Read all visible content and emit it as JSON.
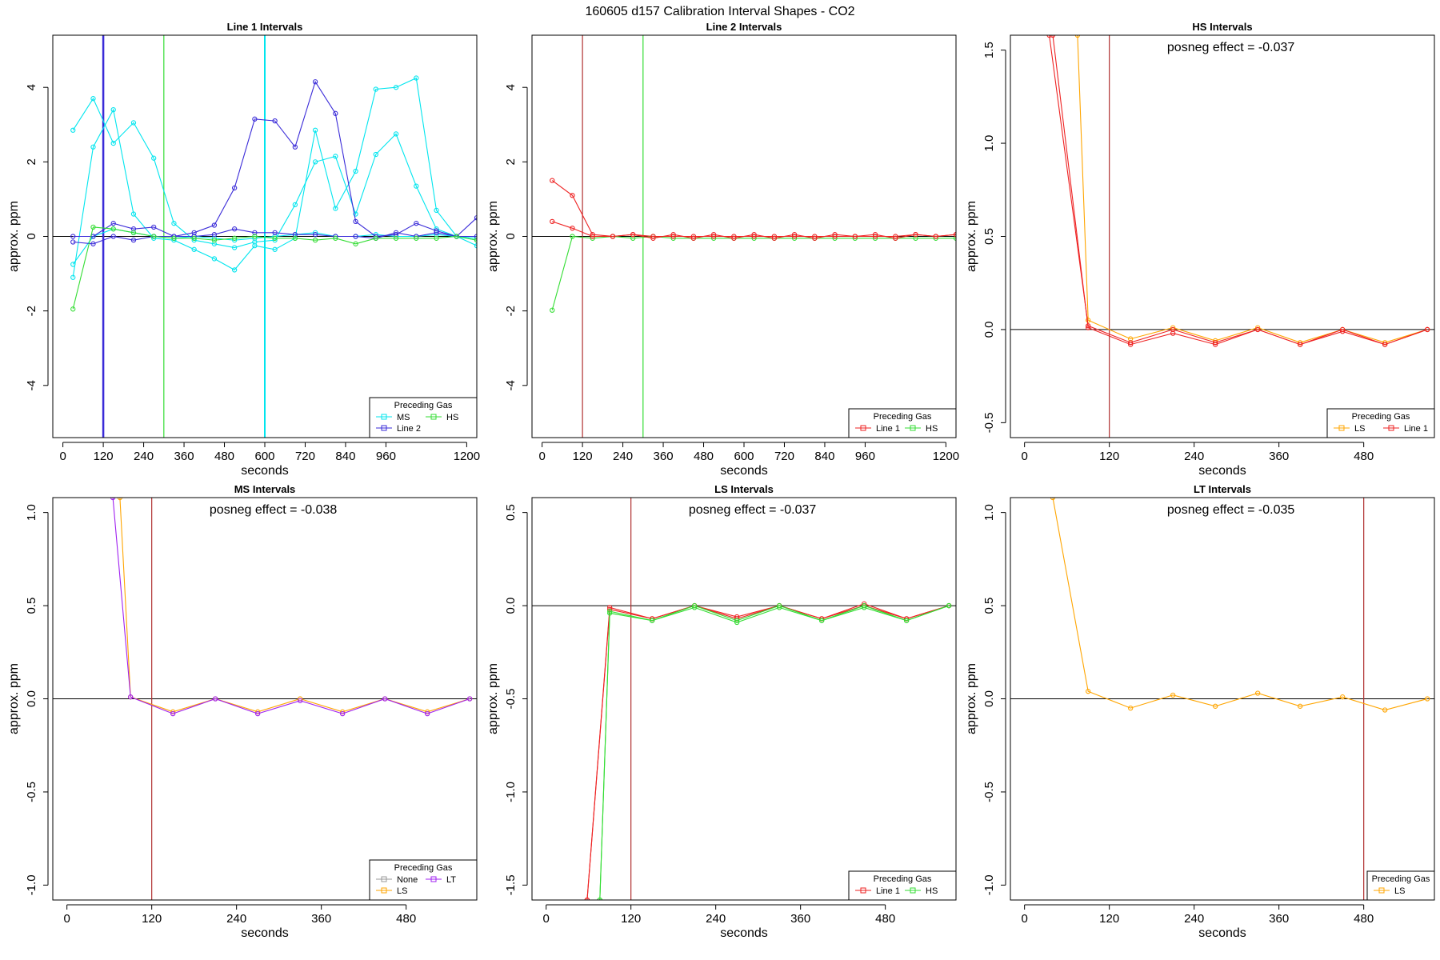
{
  "figure": {
    "title": "160605  d157   Calibration Interval Shapes - CO2"
  },
  "colors": {
    "cyan": "#00E5EE",
    "blue": "#3A2BD8",
    "green": "#33DD33",
    "red": "#EE2222",
    "orange": "#FFA500",
    "purple": "#A020F0",
    "gray": "#999999",
    "darkred": "#B03030"
  },
  "chart_data": [
    {
      "type": "line",
      "title": "Line 1 Intervals",
      "xlabel": "seconds",
      "ylabel": "approx. ppm",
      "xlim": [
        -30,
        1230
      ],
      "ylim": [
        -5.4,
        5.4
      ],
      "xticks": [
        0,
        120,
        240,
        360,
        480,
        600,
        720,
        840,
        960,
        1200
      ],
      "yticks": [
        -4,
        -2,
        0,
        2,
        4
      ],
      "annotation": "",
      "marker": "circle",
      "vlines": [
        {
          "x": 120,
          "color": "#3A2BD8",
          "width": 2.5
        },
        {
          "x": 300,
          "color": "#33DD33",
          "width": 1.2
        },
        {
          "x": 600,
          "color": "#00E5EE",
          "width": 2
        }
      ],
      "legend": {
        "title": "Preceding Gas",
        "position": "bottom-right",
        "columns": 2,
        "entries": [
          {
            "name": "MS",
            "color": "#00E5EE"
          },
          {
            "name": "HS",
            "color": "#33DD33"
          },
          {
            "name": "Line 2",
            "color": "#3A2BD8"
          }
        ]
      },
      "series": [
        {
          "color": "#00E5EE",
          "x": [
            30,
            90,
            150,
            210,
            270,
            330,
            390,
            450,
            510,
            570,
            630,
            690,
            750,
            810,
            870,
            930,
            990,
            1050,
            1110,
            1170,
            1230
          ],
          "y": [
            -1.1,
            2.4,
            3.4,
            0.6,
            -0.05,
            -0.1,
            -0.35,
            -0.6,
            -0.9,
            -0.25,
            -0.35,
            -0.05,
            2.85,
            0.75,
            1.75,
            3.95,
            4.0,
            4.25,
            0.7,
            0.0,
            -0.25
          ]
        },
        {
          "color": "#00E5EE",
          "x": [
            30,
            90,
            150,
            210,
            270,
            330,
            390,
            450,
            510,
            570,
            630,
            690,
            750,
            810,
            870,
            930,
            990,
            1050,
            1110,
            1170,
            1230
          ],
          "y": [
            2.85,
            3.7,
            2.5,
            3.05,
            2.1,
            0.35,
            -0.1,
            -0.2,
            -0.3,
            -0.15,
            -0.1,
            0.85,
            2.0,
            2.15,
            0.6,
            2.2,
            2.75,
            1.35,
            0.2,
            0.0,
            -0.1
          ]
        },
        {
          "color": "#00E5EE",
          "x": [
            30,
            90,
            150,
            210,
            270,
            330,
            390,
            450,
            510,
            570,
            630,
            690,
            750,
            810,
            870,
            930,
            990,
            1050,
            1110,
            1170,
            1230
          ],
          "y": [
            -0.75,
            0.0,
            0.2,
            0.1,
            0.0,
            -0.05,
            0.0,
            -0.05,
            -0.1,
            -0.05,
            0.0,
            0.05,
            0.1,
            0.0,
            0.0,
            0.05,
            0.0,
            0.0,
            0.05,
            0.0,
            -0.05
          ]
        },
        {
          "color": "#3A2BD8",
          "x": [
            30,
            90,
            150,
            210,
            270,
            330,
            390,
            450,
            510,
            570,
            630,
            690,
            750,
            810,
            870,
            930,
            990,
            1050,
            1110,
            1170,
            1230
          ],
          "y": [
            0.0,
            0.0,
            0.35,
            0.2,
            0.25,
            0.0,
            0.1,
            0.3,
            1.3,
            3.15,
            3.1,
            2.4,
            4.15,
            3.3,
            0.4,
            0.0,
            0.05,
            0.35,
            0.15,
            0.0,
            0.5
          ]
        },
        {
          "color": "#3A2BD8",
          "x": [
            30,
            90,
            150,
            210,
            270,
            330,
            390,
            450,
            510,
            570,
            630,
            690,
            750,
            810,
            870,
            930,
            990,
            1050,
            1110,
            1170,
            1230
          ],
          "y": [
            -0.15,
            -0.2,
            0.0,
            -0.1,
            0.0,
            0.0,
            0.0,
            0.05,
            0.2,
            0.1,
            0.1,
            0.05,
            0.05,
            0.0,
            0.0,
            -0.05,
            0.1,
            0.0,
            0.1,
            0.0,
            0.0
          ]
        },
        {
          "color": "#33DD33",
          "x": [
            30,
            90,
            150,
            210,
            270,
            330,
            390,
            450,
            510,
            570,
            630,
            690,
            750,
            810,
            870,
            930,
            990,
            1050,
            1110,
            1170,
            1230
          ],
          "y": [
            -1.95,
            0.25,
            0.2,
            0.1,
            0.0,
            -0.05,
            -0.05,
            -0.1,
            -0.05,
            0.0,
            -0.05,
            -0.05,
            -0.1,
            -0.05,
            -0.2,
            -0.05,
            -0.05,
            -0.05,
            -0.05,
            0.0,
            -0.1
          ]
        }
      ]
    },
    {
      "type": "line",
      "title": "Line 2 Intervals",
      "xlabel": "seconds",
      "ylabel": "approx. ppm",
      "xlim": [
        -30,
        1230
      ],
      "ylim": [
        -5.4,
        5.4
      ],
      "xticks": [
        0,
        120,
        240,
        360,
        480,
        600,
        720,
        840,
        960,
        1200
      ],
      "yticks": [
        -4,
        -2,
        0,
        2,
        4
      ],
      "annotation": "",
      "marker": "circle",
      "vlines": [
        {
          "x": 120,
          "color": "#B03030",
          "width": 1.2
        },
        {
          "x": 300,
          "color": "#33DD33",
          "width": 1.2
        }
      ],
      "legend": {
        "title": "Preceding Gas",
        "position": "bottom-right",
        "columns": 2,
        "entries": [
          {
            "name": "Line 1",
            "color": "#EE2222"
          },
          {
            "name": "HS",
            "color": "#33DD33"
          }
        ]
      },
      "series": [
        {
          "color": "#33DD33",
          "x": [
            30,
            90,
            150,
            210,
            270,
            330,
            390,
            450,
            510,
            570,
            630,
            690,
            750,
            810,
            870,
            930,
            990,
            1050,
            1110,
            1170,
            1230
          ],
          "y": [
            -1.98,
            0.0,
            -0.05,
            0.0,
            -0.05,
            0.0,
            -0.05,
            -0.05,
            -0.05,
            -0.05,
            -0.05,
            -0.05,
            -0.05,
            -0.05,
            -0.05,
            -0.05,
            -0.05,
            -0.05,
            -0.05,
            -0.05,
            -0.05
          ]
        },
        {
          "color": "#EE2222",
          "x": [
            30,
            90,
            150,
            210,
            270,
            330,
            390,
            450,
            510,
            570,
            630,
            690,
            750,
            810,
            870,
            930,
            990,
            1050,
            1110,
            1170,
            1230
          ],
          "y": [
            1.5,
            1.1,
            0.05,
            0.0,
            0.05,
            -0.05,
            0.05,
            -0.05,
            0.05,
            -0.05,
            0.05,
            -0.05,
            0.05,
            -0.05,
            0.05,
            0.0,
            0.05,
            -0.05,
            0.05,
            0.0,
            0.05
          ]
        },
        {
          "color": "#EE2222",
          "x": [
            30,
            90,
            150,
            210,
            270,
            330,
            390,
            450,
            510,
            570,
            630,
            690,
            750,
            810,
            870,
            930,
            990,
            1050,
            1110,
            1170,
            1230
          ],
          "y": [
            0.4,
            0.22,
            0.0,
            0.0,
            0.05,
            0.0,
            0.0,
            0.0,
            0.0,
            0.0,
            0.0,
            0.0,
            0.0,
            0.0,
            0.0,
            0.0,
            0.0,
            0.0,
            0.05,
            0.0,
            0.05
          ]
        }
      ]
    },
    {
      "type": "line",
      "title": "HS Intervals",
      "xlabel": "seconds",
      "ylabel": "approx. ppm",
      "xlim": [
        -20,
        580
      ],
      "ylim": [
        -0.58,
        1.58
      ],
      "xticks": [
        0,
        120,
        240,
        360,
        480
      ],
      "yticks": [
        -0.5,
        0.0,
        0.5,
        1.0,
        1.5
      ],
      "annotation": "posneg effect = -0.037",
      "marker": "circle",
      "vlines": [
        {
          "x": 120,
          "color": "#B03030",
          "width": 1.2
        }
      ],
      "legend": {
        "title": "Preceding Gas",
        "position": "bottom-right",
        "columns": 2,
        "entries": [
          {
            "name": "LS",
            "color": "#FFA500"
          },
          {
            "name": "Line 1",
            "color": "#EE2222"
          }
        ]
      },
      "series": [
        {
          "color": "#FFA500",
          "x": [
            75,
            90,
            150,
            210,
            270,
            330,
            390,
            450,
            510,
            570
          ],
          "y": [
            1.58,
            0.05,
            -0.05,
            0.01,
            -0.06,
            0.01,
            -0.07,
            0.0,
            -0.07,
            0.0
          ]
        },
        {
          "color": "#EE2222",
          "x": [
            40,
            90,
            150,
            210,
            270,
            330,
            390,
            450,
            510,
            570
          ],
          "y": [
            1.58,
            0.01,
            -0.08,
            -0.02,
            -0.08,
            0.0,
            -0.08,
            0.0,
            -0.08,
            0.0
          ]
        },
        {
          "color": "#EE2222",
          "x": [
            35,
            90,
            150,
            210,
            270,
            330,
            390,
            450,
            510,
            570
          ],
          "y": [
            1.58,
            0.02,
            -0.07,
            0.0,
            -0.07,
            0.0,
            -0.08,
            -0.01,
            -0.08,
            0.0
          ]
        }
      ]
    },
    {
      "type": "line",
      "title": "MS Intervals",
      "xlabel": "seconds",
      "ylabel": "approx. ppm",
      "xlim": [
        -20,
        580
      ],
      "ylim": [
        -1.08,
        1.08
      ],
      "xticks": [
        0,
        120,
        240,
        360,
        480
      ],
      "yticks": [
        -1.0,
        -0.5,
        0.0,
        0.5,
        1.0
      ],
      "annotation": "posneg effect = -0.038",
      "marker": "circle",
      "vlines": [
        {
          "x": 120,
          "color": "#B03030",
          "width": 1.2
        }
      ],
      "legend": {
        "title": "Preceding Gas",
        "position": "bottom-right",
        "columns": 2,
        "entries": [
          {
            "name": "None",
            "color": "#999999"
          },
          {
            "name": "LT",
            "color": "#A020F0"
          },
          {
            "name": "LS",
            "color": "#FFA500"
          }
        ]
      },
      "series": [
        {
          "color": "#FFA500",
          "x": [
            75,
            90,
            150,
            210,
            270,
            330,
            390,
            450,
            510,
            570
          ],
          "y": [
            1.08,
            0.01,
            -0.07,
            0.0,
            -0.07,
            0.0,
            -0.07,
            0.0,
            -0.07,
            0.0
          ]
        },
        {
          "color": "#A020F0",
          "x": [
            65,
            90,
            150,
            210,
            270,
            330,
            390,
            450,
            510,
            570
          ],
          "y": [
            1.08,
            0.01,
            -0.08,
            0.0,
            -0.08,
            -0.01,
            -0.08,
            0.0,
            -0.08,
            0.0
          ]
        }
      ]
    },
    {
      "type": "line",
      "title": "LS Intervals",
      "xlabel": "seconds",
      "ylabel": "approx. ppm",
      "xlim": [
        -20,
        580
      ],
      "ylim": [
        -1.58,
        0.58
      ],
      "xticks": [
        0,
        120,
        240,
        360,
        480
      ],
      "yticks": [
        -1.5,
        -1.0,
        -0.5,
        0.0,
        0.5
      ],
      "annotation": "posneg effect = -0.037",
      "marker": "circle",
      "vlines": [
        {
          "x": 120,
          "color": "#B03030",
          "width": 1.2
        }
      ],
      "legend": {
        "title": "Preceding Gas",
        "position": "bottom-right",
        "columns": 2,
        "entries": [
          {
            "name": "Line 1",
            "color": "#EE2222"
          },
          {
            "name": "HS",
            "color": "#33DD33"
          }
        ]
      },
      "series": [
        {
          "color": "#EE2222",
          "x": [
            58,
            90,
            150,
            210,
            270,
            330,
            390,
            450,
            510,
            570
          ],
          "y": [
            -1.58,
            -0.01,
            -0.07,
            0.0,
            -0.06,
            0.0,
            -0.07,
            0.01,
            -0.07,
            0.0
          ]
        },
        {
          "color": "#EE2222",
          "x": [
            58,
            90,
            150,
            210,
            270,
            330,
            390,
            450,
            510,
            570
          ],
          "y": [
            -1.58,
            -0.02,
            -0.07,
            0.0,
            -0.07,
            0.0,
            -0.07,
            0.0,
            -0.07,
            0.0
          ]
        },
        {
          "color": "#33DD33",
          "x": [
            76,
            90,
            150,
            210,
            270,
            330,
            390,
            450,
            510,
            570
          ],
          "y": [
            -1.58,
            -0.04,
            -0.08,
            -0.01,
            -0.09,
            -0.01,
            -0.08,
            -0.01,
            -0.08,
            0.0
          ]
        },
        {
          "color": "#33DD33",
          "x": [
            76,
            90,
            150,
            210,
            270,
            330,
            390,
            450,
            510,
            570
          ],
          "y": [
            -1.58,
            -0.03,
            -0.08,
            0.0,
            -0.08,
            0.0,
            -0.08,
            0.0,
            -0.08,
            0.0
          ]
        }
      ]
    },
    {
      "type": "line",
      "title": "LT Intervals",
      "xlabel": "seconds",
      "ylabel": "approx. ppm",
      "xlim": [
        -20,
        580
      ],
      "ylim": [
        -1.08,
        1.08
      ],
      "xticks": [
        0,
        120,
        240,
        360,
        480
      ],
      "yticks": [
        -1.0,
        -0.5,
        0.0,
        0.5,
        1.0
      ],
      "annotation": "posneg effect = -0.035",
      "marker": "circle",
      "vlines": [
        {
          "x": 480,
          "color": "#B03030",
          "width": 1.2
        }
      ],
      "legend": {
        "title": "Preceding Gas",
        "position": "bottom-right",
        "columns": 1,
        "entries": [
          {
            "name": "LS",
            "color": "#FFA500"
          }
        ]
      },
      "series": [
        {
          "color": "#FFA500",
          "x": [
            40,
            90,
            150,
            210,
            270,
            330,
            390,
            450,
            510,
            570
          ],
          "y": [
            1.08,
            0.04,
            -0.05,
            0.02,
            -0.04,
            0.03,
            -0.04,
            0.01,
            -0.06,
            0.0
          ]
        }
      ]
    }
  ]
}
